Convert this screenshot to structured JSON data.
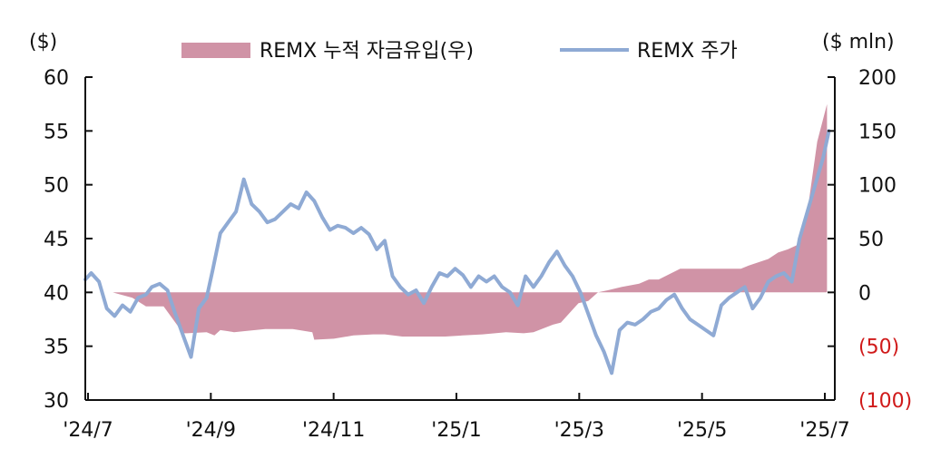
{
  "chart_data": {
    "type": "line",
    "left_unit": "($)",
    "right_unit": "($ mln)",
    "x_ticks": [
      "'24/7",
      "'24/9",
      "'24/11",
      "'25/1",
      "'25/3",
      "'25/5",
      "'25/7"
    ],
    "y_left": {
      "ticks": [
        "60",
        "55",
        "50",
        "45",
        "40",
        "35",
        "30"
      ],
      "lim": [
        30,
        60
      ]
    },
    "y_right": {
      "ticks": [
        "200",
        "150",
        "100",
        "50",
        "0",
        "(50)",
        "(100)"
      ],
      "lim": [
        -100,
        200
      ]
    },
    "colors": {
      "flow": "#d093a6",
      "price": "#8faad4",
      "negative_label": "#d01a1a"
    },
    "series": [
      {
        "name": "REMX 누적 자금유입(우)",
        "kind": "area",
        "axis": "right",
        "x": [
          "2024-07-15",
          "2024-07-25",
          "2024-08-01",
          "2024-08-10",
          "2024-08-20",
          "2024-08-22",
          "2024-09-01",
          "2024-09-05",
          "2024-09-08",
          "2024-09-12",
          "2024-09-15",
          "2024-09-20",
          "2024-10-01",
          "2024-10-15",
          "2024-10-25",
          "2024-10-26",
          "2024-11-05",
          "2024-11-15",
          "2024-11-25",
          "2024-12-01",
          "2024-12-10",
          "2024-12-20",
          "2025-01-01",
          "2025-01-10",
          "2025-01-20",
          "2025-02-01",
          "2025-02-10",
          "2025-02-15",
          "2025-02-25",
          "2025-03-01",
          "2025-03-10",
          "2025-03-15",
          "2025-03-20",
          "2025-03-25",
          "2025-04-01",
          "2025-04-10",
          "2025-04-15",
          "2025-04-20",
          "2025-05-01",
          "2025-05-10",
          "2025-05-20",
          "2025-05-25",
          "2025-06-01",
          "2025-06-05",
          "2025-06-10",
          "2025-06-15",
          "2025-06-20",
          "2025-06-25",
          "2025-07-01",
          "2025-07-05",
          "2025-07-10",
          "2025-07-15"
        ],
        "values": [
          0,
          -5,
          -13,
          -13,
          -38,
          -38,
          -37,
          -40,
          -35,
          -36,
          -37,
          -36,
          -34,
          -34,
          -37,
          -44,
          -43,
          -40,
          -39,
          -39,
          -41,
          -41,
          -41,
          -40,
          -39,
          -37,
          -38,
          -37,
          -30,
          -28,
          -10,
          -8,
          0,
          2,
          5,
          8,
          12,
          12,
          22,
          22,
          22,
          22,
          22,
          25,
          28,
          31,
          37,
          40,
          45,
          75,
          140,
          175
        ]
      },
      {
        "name": "REMX 주가",
        "kind": "line",
        "axis": "left",
        "x": [
          "2024-07-01",
          "2024-07-04",
          "2024-07-08",
          "2024-07-12",
          "2024-07-16",
          "2024-07-20",
          "2024-07-24",
          "2024-07-28",
          "2024-08-01",
          "2024-08-04",
          "2024-08-08",
          "2024-08-12",
          "2024-08-16",
          "2024-08-20",
          "2024-08-24",
          "2024-08-28",
          "2024-09-01",
          "2024-09-04",
          "2024-09-08",
          "2024-09-12",
          "2024-09-16",
          "2024-09-20",
          "2024-09-24",
          "2024-09-28",
          "2024-10-02",
          "2024-10-06",
          "2024-10-10",
          "2024-10-14",
          "2024-10-18",
          "2024-10-22",
          "2024-10-26",
          "2024-10-30",
          "2024-11-03",
          "2024-11-07",
          "2024-11-11",
          "2024-11-15",
          "2024-11-19",
          "2024-11-23",
          "2024-11-27",
          "2024-12-01",
          "2024-12-05",
          "2024-12-09",
          "2024-12-13",
          "2024-12-17",
          "2024-12-21",
          "2024-12-25",
          "2024-12-29",
          "2025-01-02",
          "2025-01-06",
          "2025-01-10",
          "2025-01-14",
          "2025-01-18",
          "2025-01-22",
          "2025-01-26",
          "2025-01-30",
          "2025-02-03",
          "2025-02-07",
          "2025-02-11",
          "2025-02-15",
          "2025-02-19",
          "2025-02-23",
          "2025-02-27",
          "2025-03-03",
          "2025-03-07",
          "2025-03-11",
          "2025-03-15",
          "2025-03-19",
          "2025-03-23",
          "2025-03-27",
          "2025-03-31",
          "2025-04-04",
          "2025-04-08",
          "2025-04-12",
          "2025-04-16",
          "2025-04-20",
          "2025-04-24",
          "2025-04-28",
          "2025-05-02",
          "2025-05-06",
          "2025-05-10",
          "2025-05-14",
          "2025-05-18",
          "2025-05-22",
          "2025-05-26",
          "2025-05-30",
          "2025-06-03",
          "2025-06-07",
          "2025-06-11",
          "2025-06-15",
          "2025-06-19",
          "2025-06-23",
          "2025-06-27",
          "2025-07-01",
          "2025-07-05",
          "2025-07-09",
          "2025-07-13",
          "2025-07-16"
        ],
        "values": [
          41.2,
          41.8,
          41,
          38.5,
          37.8,
          38.8,
          38.2,
          39.5,
          39.8,
          40.5,
          40.8,
          40.2,
          38,
          36,
          34,
          38.5,
          39.5,
          42,
          45.5,
          46.5,
          47.5,
          50.5,
          48.2,
          47.5,
          46.5,
          46.8,
          47.5,
          48.2,
          47.8,
          49.3,
          48.5,
          47,
          45.8,
          46.2,
          46,
          45.5,
          46,
          45.4,
          44,
          44.8,
          41.5,
          40.5,
          39.8,
          40.2,
          39,
          40.5,
          41.8,
          41.5,
          42.2,
          41.6,
          40.5,
          41.5,
          41,
          41.5,
          40.5,
          40,
          38.8,
          41.5,
          40.5,
          41.5,
          42.8,
          43.8,
          42.5,
          41.5,
          40,
          38,
          36,
          34.5,
          32.5,
          36.5,
          37.2,
          37,
          37.5,
          38.2,
          38.5,
          39.3,
          39.8,
          38.5,
          37.5,
          37,
          36.5,
          36,
          38.8,
          39.5,
          40,
          40.5,
          38.5,
          39.5,
          41,
          41.5,
          41.8,
          41,
          45,
          47.5,
          50,
          52.5,
          55
        ]
      }
    ]
  }
}
